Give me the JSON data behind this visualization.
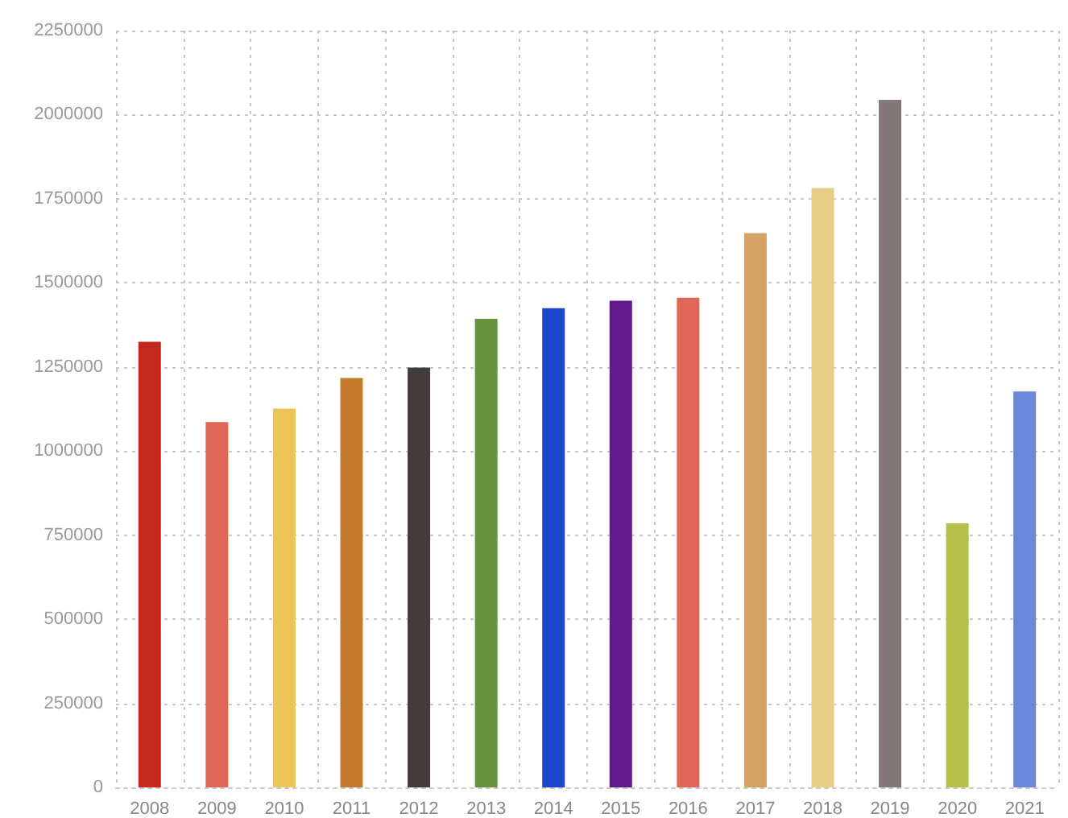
{
  "chart_data": {
    "type": "bar",
    "categories": [
      "2008",
      "2009",
      "2010",
      "2011",
      "2012",
      "2013",
      "2014",
      "2015",
      "2016",
      "2017",
      "2018",
      "2019",
      "2020",
      "2021"
    ],
    "values": [
      1325000,
      1086000,
      1126000,
      1217000,
      1248000,
      1393000,
      1425000,
      1447000,
      1456000,
      1648000,
      1782000,
      2044000,
      785000,
      1177000
    ],
    "colors": [
      "#c4291f",
      "#e06657",
      "#ecc45a",
      "#c47b2d",
      "#433c3d",
      "#67933d",
      "#1c46cc",
      "#62198c",
      "#e06657",
      "#d5a464",
      "#e7cf88",
      "#837779",
      "#b5c04a",
      "#6a89d8"
    ],
    "ylim": [
      0,
      2250000
    ],
    "yticks": [
      0,
      250000,
      500000,
      750000,
      1000000,
      1250000,
      1500000,
      1750000,
      2000000,
      2250000
    ],
    "grid": true
  }
}
